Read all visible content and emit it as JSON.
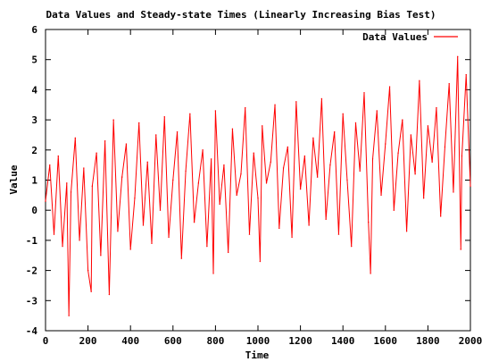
{
  "chart_data": {
    "type": "line",
    "title": "Data Values and Steady-state Times (Linearly Increasing Bias Test)",
    "xlabel": "Time",
    "ylabel": "Value",
    "xlim": [
      0,
      2000
    ],
    "ylim": [
      -4,
      6
    ],
    "x_ticks": [
      0,
      200,
      400,
      600,
      800,
      1000,
      1200,
      1400,
      1600,
      1800,
      2000
    ],
    "y_ticks": [
      -4,
      -3,
      -2,
      -1,
      0,
      1,
      2,
      3,
      4,
      5,
      6
    ],
    "grid": false,
    "legend_position": "top-right",
    "series": [
      {
        "name": "Data Values",
        "color": "#ff0000",
        "x": [
          0,
          20,
          40,
          60,
          80,
          100,
          110,
          120,
          140,
          160,
          180,
          200,
          215,
          220,
          240,
          260,
          280,
          300,
          320,
          340,
          360,
          380,
          400,
          420,
          440,
          460,
          480,
          500,
          520,
          540,
          560,
          580,
          600,
          620,
          640,
          660,
          680,
          700,
          720,
          740,
          760,
          780,
          790,
          800,
          820,
          840,
          860,
          880,
          900,
          920,
          940,
          960,
          980,
          1000,
          1010,
          1020,
          1040,
          1060,
          1080,
          1100,
          1120,
          1140,
          1160,
          1180,
          1200,
          1220,
          1240,
          1260,
          1280,
          1300,
          1320,
          1340,
          1360,
          1380,
          1400,
          1420,
          1440,
          1460,
          1480,
          1500,
          1520,
          1530,
          1540,
          1560,
          1580,
          1600,
          1620,
          1640,
          1660,
          1680,
          1700,
          1720,
          1740,
          1760,
          1780,
          1800,
          1820,
          1840,
          1860,
          1880,
          1900,
          1920,
          1940,
          1955,
          1960,
          1980,
          2000
        ],
        "y": [
          0.3,
          1.5,
          -0.8,
          1.8,
          -1.2,
          0.9,
          -3.5,
          0.6,
          2.4,
          -1.0,
          1.4,
          -2.0,
          -2.7,
          0.8,
          1.9,
          -1.5,
          2.3,
          -2.8,
          3.0,
          -0.7,
          1.1,
          2.2,
          -1.3,
          0.4,
          2.9,
          -0.5,
          1.6,
          -1.1,
          2.5,
          0.0,
          3.1,
          -0.9,
          1.0,
          2.6,
          -1.6,
          1.3,
          3.2,
          -0.4,
          0.9,
          2.0,
          -1.2,
          1.7,
          -2.1,
          3.3,
          0.2,
          1.5,
          -1.4,
          2.7,
          0.5,
          1.2,
          3.4,
          -0.8,
          1.9,
          0.4,
          -1.7,
          2.8,
          0.9,
          1.6,
          3.5,
          -0.6,
          1.4,
          2.1,
          -0.9,
          3.6,
          0.7,
          1.8,
          -0.5,
          2.4,
          1.1,
          3.7,
          -0.3,
          1.5,
          2.6,
          -0.8,
          3.2,
          1.0,
          -1.2,
          2.9,
          1.3,
          3.9,
          -0.4,
          -2.1,
          1.7,
          3.3,
          0.5,
          2.2,
          4.1,
          0.0,
          1.9,
          3.0,
          -0.7,
          2.5,
          1.2,
          4.3,
          0.4,
          2.8,
          1.6,
          3.4,
          -0.2,
          2.1,
          4.2,
          0.6,
          5.1,
          -1.3,
          1.8,
          4.5,
          0.8
        ]
      }
    ]
  }
}
